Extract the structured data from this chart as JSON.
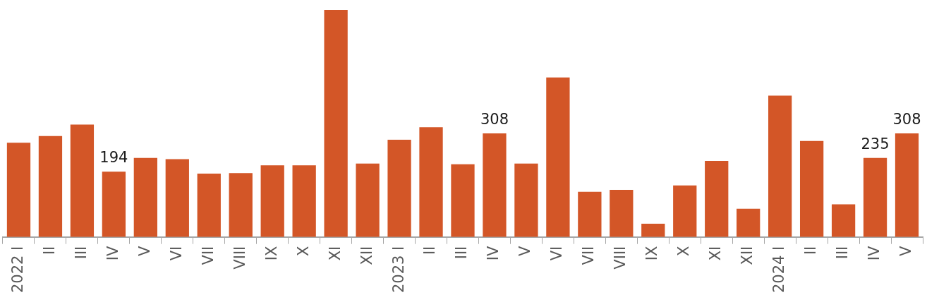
{
  "chart_data": {
    "type": "bar",
    "categories": [
      "2022 I",
      "II",
      "III",
      "IV",
      "V",
      "VI",
      "VII",
      "VIII",
      "IX",
      "X",
      "XI",
      "XII",
      "2023 I",
      "II",
      "III",
      "IV",
      "V",
      "VI",
      "VII",
      "VIII",
      "IX",
      "X",
      "XI",
      "XII",
      "2024 I",
      "II",
      "III",
      "IV",
      "V"
    ],
    "values": [
      280,
      300,
      334,
      194,
      235,
      231,
      188,
      190,
      213,
      213,
      675,
      218,
      289,
      326,
      216,
      308,
      218,
      474,
      134,
      140,
      39,
      153,
      226,
      84,
      420,
      285,
      97,
      235,
      308
    ],
    "value_labels": [
      null,
      null,
      null,
      "194",
      null,
      null,
      null,
      null,
      null,
      null,
      null,
      null,
      null,
      null,
      null,
      "308",
      null,
      null,
      null,
      null,
      null,
      null,
      null,
      null,
      null,
      null,
      null,
      "235",
      "308"
    ],
    "color": "#d35627",
    "grid": false,
    "legend": false,
    "tick_labels": "x"
  }
}
